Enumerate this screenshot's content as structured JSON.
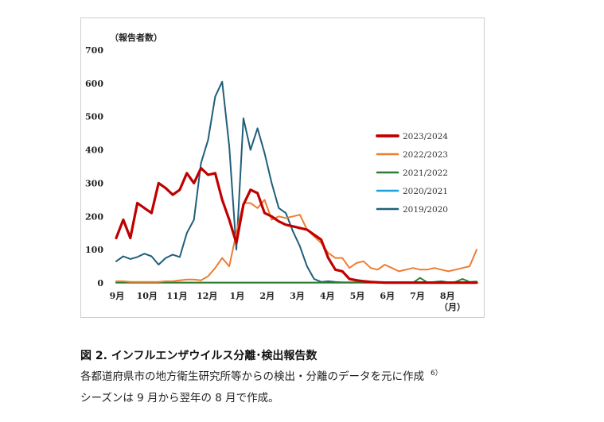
{
  "chart_data": {
    "type": "line",
    "title": "",
    "ylabel": "（報告者数）",
    "xlabel": "（月）",
    "ylim": [
      0,
      700
    ],
    "yticks": [
      0,
      100,
      200,
      300,
      400,
      500,
      600,
      700
    ],
    "xticks": [
      "9月",
      "10月",
      "11月",
      "12月",
      "1月",
      "2月",
      "3月",
      "4月",
      "5月",
      "6月",
      "7月",
      "8月"
    ],
    "weeks": 52,
    "series": [
      {
        "name": "2023/2024",
        "color": "#c00000",
        "width": 3.2,
        "values": [
          135,
          190,
          135,
          240,
          225,
          210,
          300,
          285,
          265,
          280,
          330,
          300,
          345,
          325,
          330,
          250,
          190,
          120,
          235,
          280,
          270,
          210,
          200,
          185,
          175,
          170,
          165,
          160,
          145,
          130,
          75,
          40,
          35,
          12,
          8,
          5,
          3,
          2,
          1,
          1,
          1,
          1,
          1,
          1,
          1,
          1,
          1,
          1,
          1,
          1,
          1,
          1
        ]
      },
      {
        "name": "2022/2023",
        "color": "#ed7d31",
        "width": 2,
        "values": [
          5,
          5,
          3,
          3,
          3,
          3,
          3,
          5,
          5,
          8,
          10,
          10,
          8,
          20,
          45,
          75,
          50,
          150,
          240,
          240,
          225,
          250,
          190,
          200,
          195,
          200,
          205,
          160,
          140,
          120,
          90,
          75,
          75,
          45,
          60,
          65,
          45,
          40,
          55,
          45,
          35,
          40,
          45,
          40,
          40,
          45,
          40,
          35,
          40,
          45,
          50,
          100
        ]
      },
      {
        "name": "2021/2022",
        "color": "#2e7d32",
        "width": 2,
        "values": [
          1,
          1,
          1,
          1,
          1,
          1,
          1,
          1,
          1,
          1,
          1,
          1,
          1,
          1,
          1,
          1,
          1,
          1,
          1,
          1,
          1,
          1,
          1,
          1,
          1,
          1,
          1,
          1,
          1,
          1,
          1,
          1,
          1,
          1,
          1,
          1,
          1,
          1,
          1,
          1,
          1,
          1,
          1,
          15,
          2,
          3,
          5,
          2,
          3,
          12,
          3,
          4
        ]
      },
      {
        "name": "2020/2021",
        "color": "#1ea0dc",
        "width": 2,
        "values": [
          1,
          1,
          1,
          1,
          1,
          1,
          1,
          1,
          1,
          1,
          1,
          1,
          1,
          1,
          1,
          1,
          1,
          1,
          1,
          1,
          1,
          1,
          1,
          1,
          1,
          1,
          1,
          1,
          1,
          1,
          1,
          1,
          1,
          1,
          1,
          1,
          1,
          1,
          1,
          1,
          1,
          1,
          1,
          1,
          1,
          1,
          1,
          1,
          1,
          1,
          1,
          1
        ]
      },
      {
        "name": "2019/2020",
        "color": "#1f5f7a",
        "width": 2,
        "values": [
          65,
          80,
          72,
          78,
          88,
          80,
          55,
          75,
          85,
          78,
          150,
          190,
          360,
          430,
          560,
          605,
          410,
          100,
          495,
          400,
          465,
          390,
          300,
          225,
          210,
          155,
          110,
          50,
          12,
          3,
          5,
          3,
          2,
          2,
          2,
          1,
          1,
          1,
          1,
          1,
          1,
          1,
          1,
          1,
          1,
          1,
          1,
          1,
          1,
          1,
          1,
          1
        ]
      }
    ]
  },
  "caption": {
    "title": "図 2. インフルエンザウイルス分離･検出報告数",
    "line1": "各都道府県市の地方衛生研究所等からの検出・分離のデータを元に作成",
    "line1_ref": "6）",
    "line2": "シーズンは 9 月から翌年の 8 月で作成。"
  }
}
